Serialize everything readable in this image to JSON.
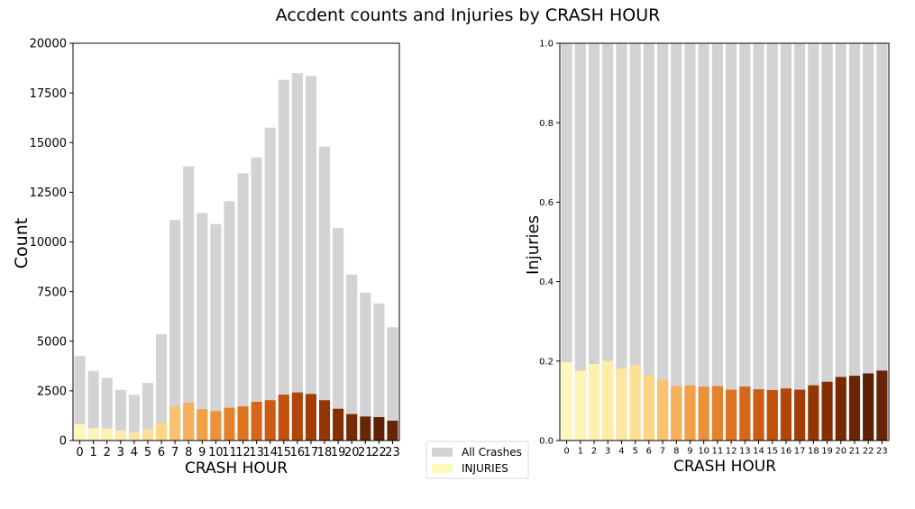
{
  "title": "Accdent counts and Injuries by CRASH HOUR",
  "legend": {
    "placement": "bottom-center",
    "items": [
      {
        "label": "All Crashes",
        "color": "#d3d3d3"
      },
      {
        "label": "INJURIES",
        "color": "#fff7bc"
      }
    ]
  },
  "chart_data": [
    {
      "type": "bar",
      "stacking": "overlay",
      "xlabel": "CRASH HOUR",
      "ylabel": "Count",
      "ylim": [
        0,
        20000
      ],
      "yticks": [
        "0",
        "2500",
        "5000",
        "7500",
        "10000",
        "12500",
        "15000",
        "17500",
        "20000"
      ],
      "categories": [
        "0",
        "1",
        "2",
        "3",
        "4",
        "5",
        "6",
        "7",
        "8",
        "9",
        "10",
        "11",
        "12",
        "13",
        "14",
        "15",
        "16",
        "17",
        "18",
        "19",
        "20",
        "21",
        "22",
        "23"
      ],
      "grid": false,
      "series": [
        {
          "name": "All Crashes",
          "color": "#d3d3d3",
          "values": [
            4250,
            3500,
            3150,
            2550,
            2300,
            2900,
            5350,
            11100,
            13800,
            11450,
            10900,
            12050,
            13450,
            14250,
            15750,
            18150,
            18500,
            18350,
            14800,
            10700,
            8350,
            7450,
            6900,
            5700
          ]
        },
        {
          "name": "INJURIES",
          "values": [
            820,
            620,
            610,
            510,
            420,
            560,
            880,
            1720,
            1900,
            1580,
            1480,
            1650,
            1720,
            1950,
            2030,
            2310,
            2420,
            2340,
            2030,
            1600,
            1330,
            1210,
            1180,
            1000
          ]
        }
      ]
    },
    {
      "type": "bar",
      "stacking": "overlay",
      "xlabel": "CRASH HOUR",
      "ylabel": "Injuries",
      "ylim": [
        0,
        1.0
      ],
      "yticks": [
        "0.0",
        "0.2",
        "0.4",
        "0.6",
        "0.8",
        "1.0"
      ],
      "categories": [
        "0",
        "1",
        "2",
        "3",
        "4",
        "5",
        "6",
        "7",
        "8",
        "9",
        "10",
        "11",
        "12",
        "13",
        "14",
        "15",
        "16",
        "17",
        "18",
        "19",
        "20",
        "21",
        "22",
        "23"
      ],
      "grid": false,
      "series": [
        {
          "name": "All Crashes",
          "color": "#d3d3d3",
          "values": [
            1,
            1,
            1,
            1,
            1,
            1,
            1,
            1,
            1,
            1,
            1,
            1,
            1,
            1,
            1,
            1,
            1,
            1,
            1,
            1,
            1,
            1,
            1,
            1
          ]
        },
        {
          "name": "INJURIES",
          "values": [
            0.197,
            0.176,
            0.193,
            0.2,
            0.181,
            0.189,
            0.165,
            0.153,
            0.137,
            0.139,
            0.136,
            0.137,
            0.128,
            0.136,
            0.129,
            0.127,
            0.131,
            0.128,
            0.139,
            0.148,
            0.16,
            0.163,
            0.169,
            0.176
          ]
        }
      ]
    }
  ],
  "palette": [
    "#fff7bc",
    "#fff3b6",
    "#fef0af",
    "#feeca8",
    "#fee6a0",
    "#fde092",
    "#fcd585",
    "#f9c26e",
    "#f6b05a",
    "#f1a046",
    "#ec9039",
    "#e6812b",
    "#de7320",
    "#d66718",
    "#cd5b12",
    "#c0500b",
    "#b24608",
    "#a33d05",
    "#943504",
    "#852e04",
    "#772904",
    "#6a2504",
    "#5e2104",
    "#662506"
  ]
}
